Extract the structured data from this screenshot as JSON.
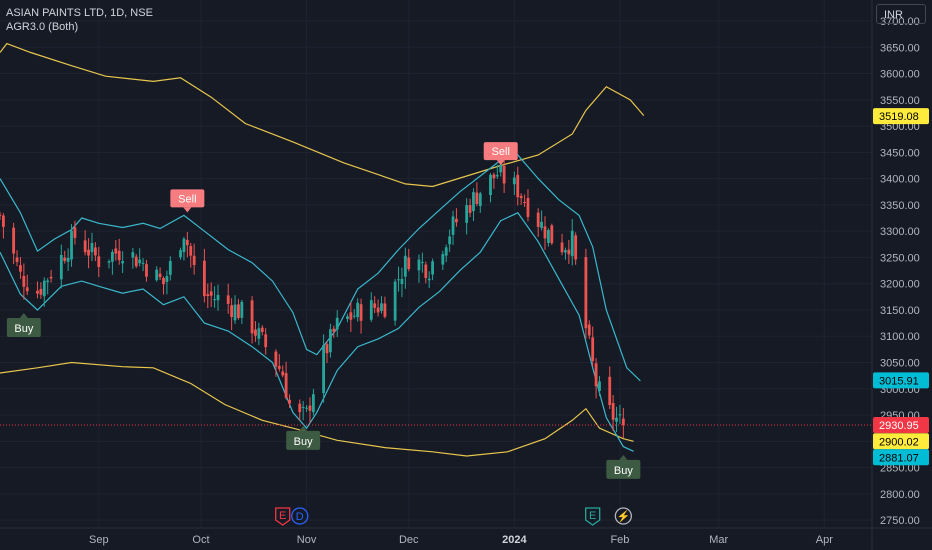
{
  "header": {
    "symbol_line": "ASIAN PAINTS LTD, 1D, NSE",
    "indicator_line": "AGR3.0 (Both)",
    "currency": "INR"
  },
  "colors": {
    "background": "#161a25",
    "grid": "#1f2331",
    "up": "#26a69a",
    "down": "#ef5350",
    "outer_band": "#e8c64d",
    "inner_band": "#3ab8cc",
    "sell": "#f77c80",
    "buy": "#3d5a43"
  },
  "chart_data": {
    "type": "candlestick",
    "ylim": [
      2735,
      3740
    ],
    "y_ticks": [
      2750,
      2800,
      2850,
      2900,
      2950,
      3000,
      3050,
      3100,
      3150,
      3200,
      3250,
      3300,
      3350,
      3400,
      3450,
      3500,
      3550,
      3600,
      3650,
      3700
    ],
    "y_tick_labels": [
      "2750.00",
      "2800.00",
      "2850.00",
      "2900.00",
      "2950.00",
      "3000.00",
      "3050.00",
      "3100.00",
      "3150.00",
      "3200.00",
      "3250.00",
      "3300.00",
      "3350.00",
      "3400.00",
      "3450.00",
      "3500.00",
      "3550.00",
      "3600.00",
      "3650.00",
      "3700.00"
    ],
    "x_ticks": [
      {
        "label": "Sep",
        "date": "2023-09-01"
      },
      {
        "label": "Oct",
        "date": "2023-10-01"
      },
      {
        "label": "Nov",
        "date": "2023-11-01"
      },
      {
        "label": "Dec",
        "date": "2023-12-01"
      },
      {
        "label": "2024",
        "date": "2024-01-01",
        "bold": true
      },
      {
        "label": "Feb",
        "date": "2024-02-01"
      },
      {
        "label": "Mar",
        "date": "2024-03-01"
      },
      {
        "label": "Apr",
        "date": "2024-04-01"
      }
    ],
    "x_range": [
      "2023-08-03",
      "2024-04-15"
    ],
    "price_tags": [
      {
        "value": 3519.08,
        "label": "3519.08",
        "bg": "#ffeb3b",
        "fg": "#000000"
      },
      {
        "value": 3015.91,
        "label": "3015.91",
        "bg": "#00bcd4",
        "fg": "#000000"
      },
      {
        "value": 2930.95,
        "label": "2930.95",
        "bg": "#f23645",
        "fg": "#ffffff"
      },
      {
        "value": 2900.02,
        "label": "2900.02",
        "bg": "#ffeb3b",
        "fg": "#000000"
      },
      {
        "value": 2881.07,
        "label": "2881.07",
        "bg": "#00bcd4",
        "fg": "#000000"
      }
    ],
    "last_price": 2930.95,
    "signals": [
      {
        "type": "buy",
        "label": "Buy",
        "date": "2023-08-10",
        "price": 3150
      },
      {
        "type": "sell",
        "label": "Sell",
        "date": "2023-09-27",
        "price": 3330
      },
      {
        "type": "buy",
        "label": "Buy",
        "date": "2023-10-31",
        "price": 2935
      },
      {
        "type": "sell",
        "label": "Sell",
        "date": "2023-12-28",
        "price": 3420
      },
      {
        "type": "buy",
        "label": "Buy",
        "date": "2024-02-02",
        "price": 2880
      }
    ],
    "events": [
      {
        "label": "E",
        "date": "2023-10-25",
        "kind": "earnings"
      },
      {
        "label": "D",
        "date": "2023-10-30",
        "kind": "dividend"
      },
      {
        "label": "E",
        "date": "2024-01-24",
        "kind": "earnings"
      },
      {
        "label": "⚡",
        "date": "2024-02-02",
        "kind": "news"
      }
    ],
    "anchors": [
      {
        "date": "2023-08-03",
        "price": 3330
      },
      {
        "date": "2023-08-09",
        "price": 3215
      },
      {
        "date": "2023-08-14",
        "price": 3185
      },
      {
        "date": "2023-08-21",
        "price": 3250
      },
      {
        "date": "2023-08-25",
        "price": 3290
      },
      {
        "date": "2023-09-01",
        "price": 3245
      },
      {
        "date": "2023-09-08",
        "price": 3265
      },
      {
        "date": "2023-09-14",
        "price": 3240
      },
      {
        "date": "2023-09-20",
        "price": 3200
      },
      {
        "date": "2023-09-26",
        "price": 3300
      },
      {
        "date": "2023-10-01",
        "price": 3180
      },
      {
        "date": "2023-10-07",
        "price": 3170
      },
      {
        "date": "2023-10-14",
        "price": 3140
      },
      {
        "date": "2023-10-20",
        "price": 3080
      },
      {
        "date": "2023-10-25",
        "price": 3030
      },
      {
        "date": "2023-10-28",
        "price": 2940
      },
      {
        "date": "2023-11-01",
        "price": 2950
      },
      {
        "date": "2023-11-05",
        "price": 3050
      },
      {
        "date": "2023-11-10",
        "price": 3120
      },
      {
        "date": "2023-11-17",
        "price": 3150
      },
      {
        "date": "2023-11-24",
        "price": 3160
      },
      {
        "date": "2023-12-01",
        "price": 3250
      },
      {
        "date": "2023-12-07",
        "price": 3230
      },
      {
        "date": "2023-12-14",
        "price": 3310
      },
      {
        "date": "2023-12-21",
        "price": 3370
      },
      {
        "date": "2023-12-27",
        "price": 3410
      },
      {
        "date": "2024-01-02",
        "price": 3380
      },
      {
        "date": "2024-01-08",
        "price": 3320
      },
      {
        "date": "2024-01-14",
        "price": 3270
      },
      {
        "date": "2024-01-18",
        "price": 3280
      },
      {
        "date": "2024-01-21",
        "price": 3150
      },
      {
        "date": "2024-01-25",
        "price": 3010
      },
      {
        "date": "2024-01-28",
        "price": 2960
      },
      {
        "date": "2024-02-02",
        "price": 2930
      }
    ],
    "outer_upper": [
      {
        "date": "2023-08-03",
        "price": 3640
      },
      {
        "date": "2023-08-05",
        "price": 3657
      },
      {
        "date": "2023-08-12",
        "price": 3640
      },
      {
        "date": "2023-08-24",
        "price": 3615
      },
      {
        "date": "2023-09-03",
        "price": 3595
      },
      {
        "date": "2023-09-17",
        "price": 3585
      },
      {
        "date": "2023-09-25",
        "price": 3592
      },
      {
        "date": "2023-10-04",
        "price": 3555
      },
      {
        "date": "2023-10-14",
        "price": 3505
      },
      {
        "date": "2023-10-28",
        "price": 3470
      },
      {
        "date": "2023-11-12",
        "price": 3430
      },
      {
        "date": "2023-11-30",
        "price": 3390
      },
      {
        "date": "2023-12-08",
        "price": 3385
      },
      {
        "date": "2023-12-18",
        "price": 3405
      },
      {
        "date": "2023-12-28",
        "price": 3425
      },
      {
        "date": "2024-01-08",
        "price": 3445
      },
      {
        "date": "2024-01-18",
        "price": 3485
      },
      {
        "date": "2024-01-22",
        "price": 3530
      },
      {
        "date": "2024-01-28",
        "price": 3575
      },
      {
        "date": "2024-02-04",
        "price": 3550
      },
      {
        "date": "2024-02-08",
        "price": 3520
      }
    ],
    "outer_lower": [
      {
        "date": "2023-08-03",
        "price": 3030
      },
      {
        "date": "2023-08-14",
        "price": 3040
      },
      {
        "date": "2023-08-24",
        "price": 3050
      },
      {
        "date": "2023-09-08",
        "price": 3042
      },
      {
        "date": "2023-09-17",
        "price": 3040
      },
      {
        "date": "2023-09-28",
        "price": 3010
      },
      {
        "date": "2023-10-08",
        "price": 2970
      },
      {
        "date": "2023-10-19",
        "price": 2940
      },
      {
        "date": "2023-10-31",
        "price": 2920
      },
      {
        "date": "2023-11-10",
        "price": 2902
      },
      {
        "date": "2023-11-24",
        "price": 2888
      },
      {
        "date": "2023-12-08",
        "price": 2880
      },
      {
        "date": "2023-12-18",
        "price": 2872
      },
      {
        "date": "2023-12-30",
        "price": 2880
      },
      {
        "date": "2024-01-10",
        "price": 2905
      },
      {
        "date": "2024-01-18",
        "price": 2940
      },
      {
        "date": "2024-01-22",
        "price": 2962
      },
      {
        "date": "2024-01-26",
        "price": 2925
      },
      {
        "date": "2024-02-02",
        "price": 2905
      },
      {
        "date": "2024-02-05",
        "price": 2900
      }
    ],
    "inner_upper": [
      {
        "date": "2023-08-03",
        "price": 3400
      },
      {
        "date": "2023-08-09",
        "price": 3335
      },
      {
        "date": "2023-08-14",
        "price": 3262
      },
      {
        "date": "2023-08-19",
        "price": 3285
      },
      {
        "date": "2023-08-24",
        "price": 3303
      },
      {
        "date": "2023-08-27",
        "price": 3325
      },
      {
        "date": "2023-09-01",
        "price": 3315
      },
      {
        "date": "2023-09-08",
        "price": 3307
      },
      {
        "date": "2023-09-14",
        "price": 3315
      },
      {
        "date": "2023-09-19",
        "price": 3305
      },
      {
        "date": "2023-09-26",
        "price": 3330
      },
      {
        "date": "2023-10-02",
        "price": 3300
      },
      {
        "date": "2023-10-09",
        "price": 3265
      },
      {
        "date": "2023-10-16",
        "price": 3240
      },
      {
        "date": "2023-10-22",
        "price": 3205
      },
      {
        "date": "2023-10-28",
        "price": 3145
      },
      {
        "date": "2023-11-01",
        "price": 3075
      },
      {
        "date": "2023-11-04",
        "price": 3065
      },
      {
        "date": "2023-11-10",
        "price": 3115
      },
      {
        "date": "2023-11-16",
        "price": 3190
      },
      {
        "date": "2023-11-22",
        "price": 3220
      },
      {
        "date": "2023-11-28",
        "price": 3265
      },
      {
        "date": "2023-12-04",
        "price": 3305
      },
      {
        "date": "2023-12-10",
        "price": 3340
      },
      {
        "date": "2023-12-16",
        "price": 3375
      },
      {
        "date": "2023-12-22",
        "price": 3405
      },
      {
        "date": "2023-12-28",
        "price": 3435
      },
      {
        "date": "2024-01-02",
        "price": 3445
      },
      {
        "date": "2024-01-08",
        "price": 3400
      },
      {
        "date": "2024-01-14",
        "price": 3360
      },
      {
        "date": "2024-01-20",
        "price": 3330
      },
      {
        "date": "2024-01-24",
        "price": 3270
      },
      {
        "date": "2024-01-28",
        "price": 3150
      },
      {
        "date": "2024-02-03",
        "price": 3040
      },
      {
        "date": "2024-02-07",
        "price": 3015
      }
    ],
    "inner_lower": [
      {
        "date": "2023-08-03",
        "price": 3260
      },
      {
        "date": "2023-08-09",
        "price": 3180
      },
      {
        "date": "2023-08-14",
        "price": 3150
      },
      {
        "date": "2023-08-21",
        "price": 3195
      },
      {
        "date": "2023-08-27",
        "price": 3205
      },
      {
        "date": "2023-09-01",
        "price": 3195
      },
      {
        "date": "2023-09-08",
        "price": 3182
      },
      {
        "date": "2023-09-14",
        "price": 3190
      },
      {
        "date": "2023-09-20",
        "price": 3160
      },
      {
        "date": "2023-09-26",
        "price": 3175
      },
      {
        "date": "2023-10-02",
        "price": 3125
      },
      {
        "date": "2023-10-09",
        "price": 3110
      },
      {
        "date": "2023-10-16",
        "price": 3080
      },
      {
        "date": "2023-10-22",
        "price": 3050
      },
      {
        "date": "2023-10-28",
        "price": 2955
      },
      {
        "date": "2023-11-01",
        "price": 2925
      },
      {
        "date": "2023-11-04",
        "price": 2955
      },
      {
        "date": "2023-11-10",
        "price": 3035
      },
      {
        "date": "2023-11-16",
        "price": 3080
      },
      {
        "date": "2023-11-22",
        "price": 3095
      },
      {
        "date": "2023-11-28",
        "price": 3115
      },
      {
        "date": "2023-12-04",
        "price": 3155
      },
      {
        "date": "2023-12-10",
        "price": 3185
      },
      {
        "date": "2023-12-16",
        "price": 3225
      },
      {
        "date": "2023-12-22",
        "price": 3260
      },
      {
        "date": "2023-12-28",
        "price": 3320
      },
      {
        "date": "2024-01-02",
        "price": 3335
      },
      {
        "date": "2024-01-08",
        "price": 3280
      },
      {
        "date": "2024-01-14",
        "price": 3210
      },
      {
        "date": "2024-01-20",
        "price": 3140
      },
      {
        "date": "2024-01-24",
        "price": 3040
      },
      {
        "date": "2024-01-28",
        "price": 2945
      },
      {
        "date": "2024-02-02",
        "price": 2890
      },
      {
        "date": "2024-02-05",
        "price": 2881
      }
    ]
  }
}
